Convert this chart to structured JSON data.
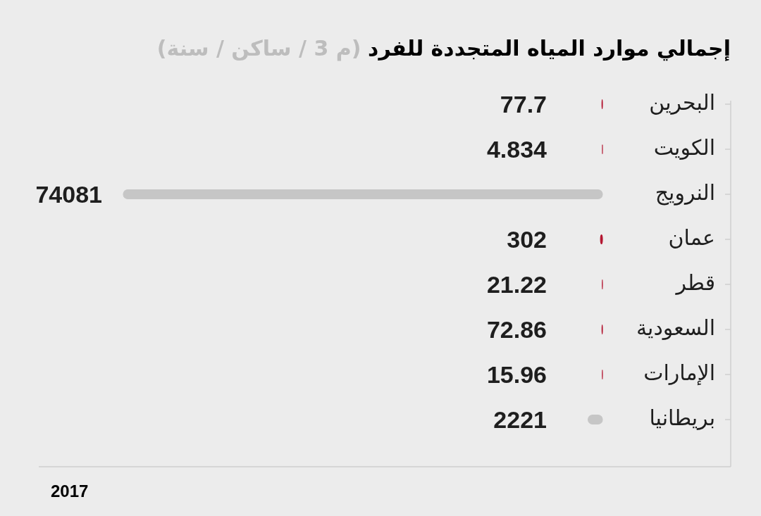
{
  "chart_data": {
    "type": "bar",
    "orientation": "horizontal",
    "title": "إجمالي موارد المياه المتجددة للفرد",
    "subtitle": "(م 3 / ساكن / سنة)",
    "categories": [
      "البحرين",
      "الكويت",
      "النرويج",
      "عمان",
      "قطر",
      "السعودية",
      "الإمارات",
      "بريطانيا"
    ],
    "values": [
      77.7,
      4.834,
      74081,
      302,
      21.22,
      72.86,
      15.96,
      2221
    ],
    "colors": [
      "#b3142f",
      "#b3142f",
      "#c6c6c6",
      "#b3142f",
      "#b3142f",
      "#b3142f",
      "#b3142f",
      "#c6c6c6"
    ],
    "data_labels": true,
    "tick_labels": "y",
    "annotations": [
      "2017"
    ]
  }
}
